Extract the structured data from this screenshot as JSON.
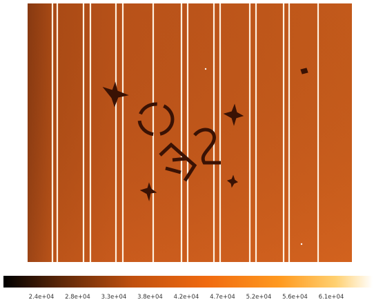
{
  "colorbar": {
    "labels": [
      "2.4e+04",
      "2.8e+04",
      "3.3e+04",
      "3.8e+04",
      "4.2e+04",
      "4.7e+04",
      "5.2e+04",
      "5.6e+04",
      "6.1e+04"
    ]
  }
}
